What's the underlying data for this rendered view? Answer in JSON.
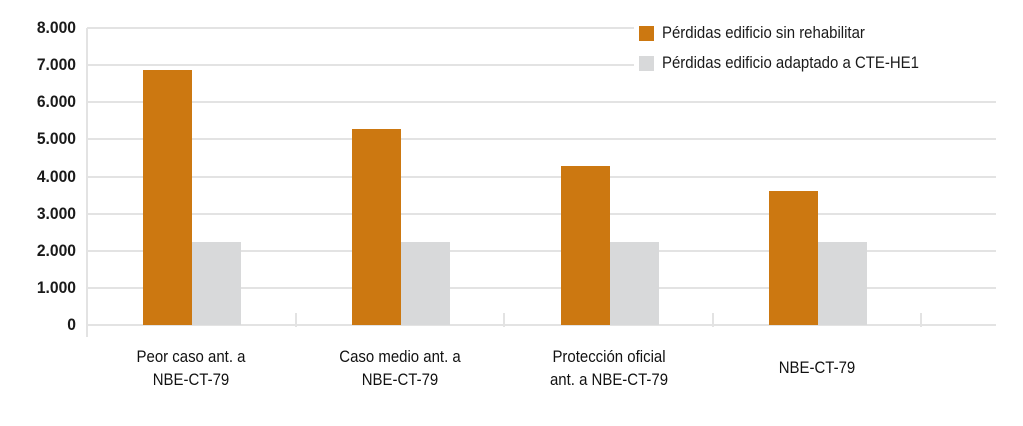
{
  "chart_data": {
    "type": "bar",
    "title": "",
    "xlabel": "",
    "ylabel": "",
    "ylim": [
      0,
      8000
    ],
    "yticks": [
      "0",
      "1.000",
      "2.000",
      "3.000",
      "4.000",
      "5.000",
      "6.000",
      "7.000",
      "8.000"
    ],
    "grid": true,
    "legend_position": "top-right",
    "categories": [
      "Peor caso ant. a NBE-CT-79",
      "Caso medio ant. a NBE-CT-79",
      "Protección oficial ant. a NBE-CT-79",
      "NBE-CT-79"
    ],
    "category_label_lines": [
      [
        "Peor caso ant. a",
        "NBE-CT-79"
      ],
      [
        "Caso medio ant. a",
        "NBE-CT-79"
      ],
      [
        "Protección oficial",
        "ant. a NBE-CT-79"
      ],
      [
        "NBE-CT-79"
      ]
    ],
    "series": [
      {
        "name": "Pérdidas edificio sin rehabilitar",
        "color": "#cc7811",
        "values": [
          6880,
          5270,
          4270,
          3620
        ]
      },
      {
        "name": "Pérdidas edificio adaptado a CTE-HE1",
        "color": "#d8d9da",
        "values": [
          2240,
          2240,
          2240,
          2240
        ]
      }
    ]
  },
  "legend": {
    "items": [
      {
        "label": "Pérdidas edificio sin rehabilitar",
        "color": "#cc7811"
      },
      {
        "label": "Pérdidas edificio adaptado a CTE-HE1",
        "color": "#d8d9da"
      }
    ]
  },
  "colors": {
    "gridline": "#e3e3e3",
    "axis_text": "#1a1a1a"
  }
}
